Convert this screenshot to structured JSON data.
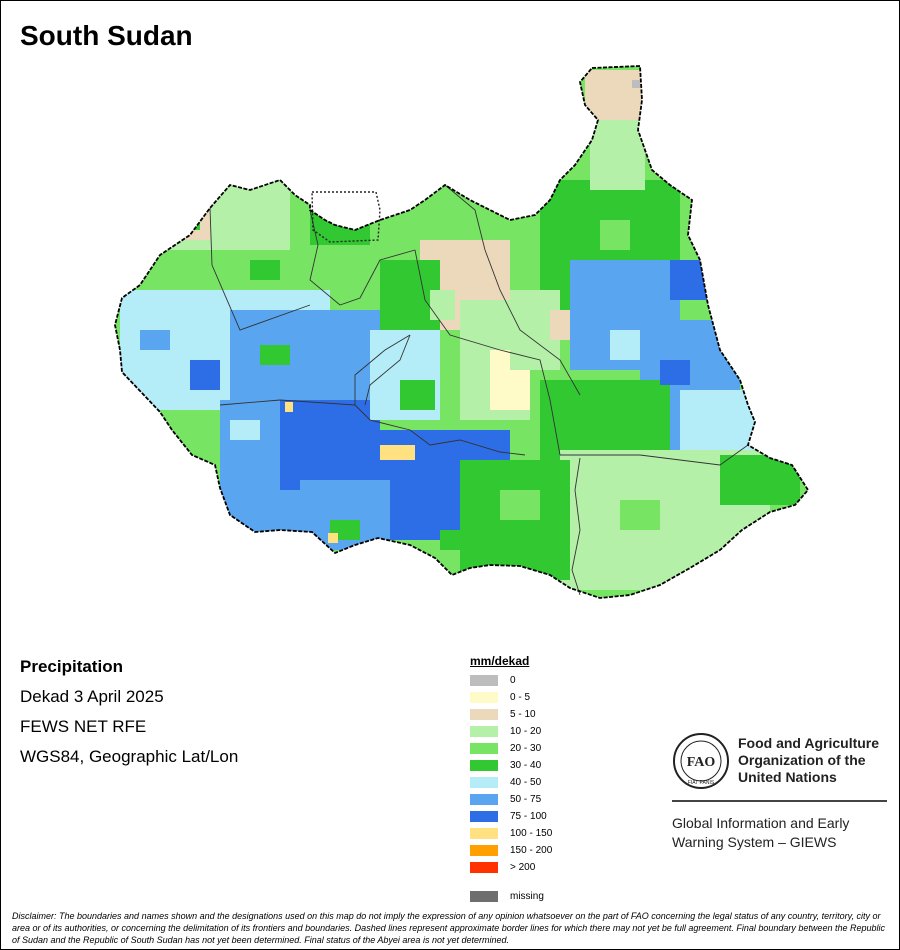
{
  "map": {
    "title": "South Sudan"
  },
  "info": {
    "heading": "Precipitation",
    "period": "Dekad 3 April 2025",
    "source": "FEWS NET RFE",
    "projection": "WGS84, Geographic Lat/Lon"
  },
  "legend": {
    "title": "mm/dekad",
    "classes": [
      {
        "label": "0",
        "color": "#bdbdbd"
      },
      {
        "label": "0 - 5",
        "color": "#fffbc8"
      },
      {
        "label": "5 - 10",
        "color": "#ecd9bb"
      },
      {
        "label": "10 - 20",
        "color": "#b4f0a8"
      },
      {
        "label": "20 - 30",
        "color": "#78e464"
      },
      {
        "label": "30 - 40",
        "color": "#32c832"
      },
      {
        "label": "40 - 50",
        "color": "#b4ecf8"
      },
      {
        "label": "50 - 75",
        "color": "#5aa5f0"
      },
      {
        "label": "75 - 100",
        "color": "#2d6ee6"
      },
      {
        "label": "100 - 150",
        "color": "#ffe182"
      },
      {
        "label": "150 - 200",
        "color": "#ffa000"
      },
      {
        "label": "> 200",
        "color": "#ff3200"
      }
    ],
    "missing": {
      "label": "missing",
      "color": "#6e6e6e"
    }
  },
  "organization": {
    "name_line1": "Food and Agriculture",
    "name_line2": "Organization of the",
    "name_line3": "United Nations",
    "logo_text": "FAO",
    "logo_motto": "FIAT PANIS",
    "program_line1": "Global Information and Early",
    "program_line2": "Warning System – GIEWS"
  },
  "disclaimer": "Disclaimer: The boundaries and names shown and the designations used on this map do not imply the expression of any opinion whatsoever on the part of FAO concerning the legal status of any country, territory, city or area or of its authorities, or concerning the delimitation of its frontiers and boundaries. Dashed lines represent approximate border lines for which there may not yet be full agreement. Final boundary between the Republic of Sudan and the Republic of South Sudan has not yet been determined. Final status of the Abyei area is not yet determined."
}
